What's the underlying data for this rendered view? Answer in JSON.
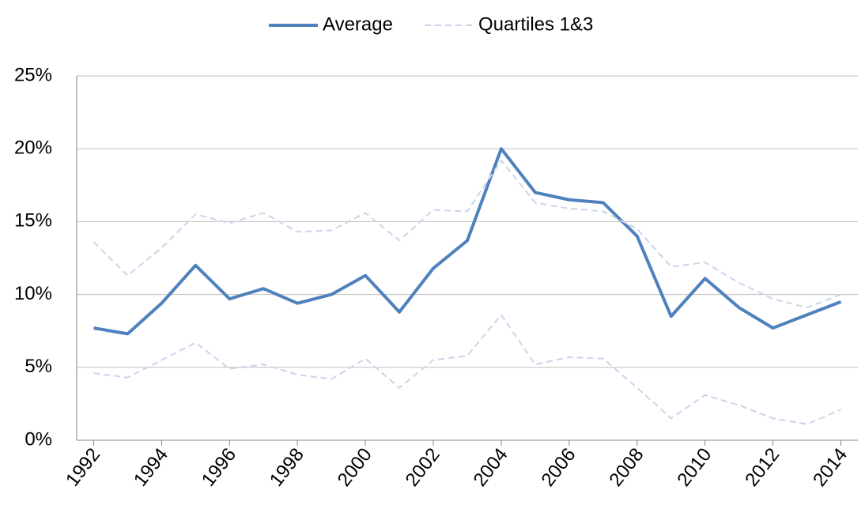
{
  "chart_data": {
    "type": "line",
    "x": [
      1992,
      1993,
      1994,
      1995,
      1996,
      1997,
      1998,
      1999,
      2000,
      2001,
      2002,
      2003,
      2004,
      2005,
      2006,
      2007,
      2008,
      2009,
      2010,
      2011,
      2012,
      2013,
      2014
    ],
    "series": [
      {
        "name": "Average",
        "color": "#4f81bd",
        "dashed": false,
        "values": [
          7.7,
          7.3,
          9.4,
          12.0,
          9.7,
          10.4,
          9.4,
          10.0,
          11.3,
          8.8,
          11.8,
          13.7,
          20.0,
          17.0,
          16.5,
          16.3,
          14.0,
          8.5,
          11.1,
          9.1,
          7.7,
          8.6,
          9.5
        ]
      },
      {
        "name": "Quartiles 1&3",
        "color": "#c9d5ea",
        "dashed": true,
        "upper": [
          13.6,
          11.3,
          13.2,
          15.5,
          14.9,
          15.6,
          14.3,
          14.4,
          15.6,
          13.7,
          15.8,
          15.7,
          19.2,
          16.3,
          15.9,
          15.7,
          14.5,
          11.9,
          12.2,
          10.8,
          9.7,
          9.1,
          10.0
        ],
        "lower": [
          4.6,
          4.3,
          5.5,
          6.7,
          4.9,
          5.2,
          4.5,
          4.2,
          5.6,
          3.6,
          5.5,
          5.8,
          8.6,
          5.2,
          5.7,
          5.6,
          3.6,
          1.5,
          3.1,
          2.4,
          1.5,
          1.1,
          2.1
        ]
      }
    ],
    "xlim": [
      1991.5,
      2014.5
    ],
    "xticks": [
      1992,
      1994,
      1996,
      1998,
      2000,
      2002,
      2004,
      2006,
      2008,
      2010,
      2012,
      2014
    ],
    "ylim": [
      0,
      25
    ],
    "yticks": [
      {
        "value": 0,
        "label": "0%"
      },
      {
        "value": 5,
        "label": "5%"
      },
      {
        "value": 10,
        "label": "10%"
      },
      {
        "value": 15,
        "label": "15%"
      },
      {
        "value": 20,
        "label": "20%"
      },
      {
        "value": 25,
        "label": "25%"
      }
    ],
    "grid": true,
    "legend": "top"
  }
}
